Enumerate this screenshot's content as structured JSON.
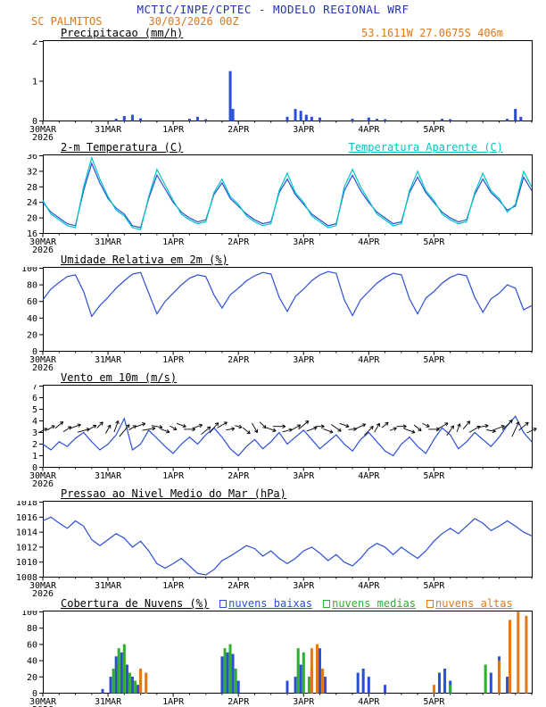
{
  "header": {
    "title": "MCTIC/INPE/CPTEC - MODELO REGIONAL WRF",
    "station": "SC PALMITOS",
    "run_datetime": "30/03/2026 00Z"
  },
  "colors": {
    "title_blue": "#2233bb",
    "orange": "#e07818",
    "line_blue": "#2a4fd6",
    "cyan": "#00c4c4",
    "green": "#2fae2f",
    "axis_black": "#000000"
  },
  "x_axis": {
    "domain_hours": [
      0,
      180
    ],
    "step_hours": 3,
    "minor_step": 6,
    "tick_hours": [
      0,
      24,
      48,
      72,
      96,
      120,
      144
    ],
    "tick_labels": [
      "30MAR",
      "31MAR",
      "1APR",
      "2APR",
      "3APR",
      "4APR",
      "5APR"
    ],
    "year_label": "2026"
  },
  "chart_data": [
    {
      "id": "precip",
      "type": "bar",
      "title": "Precipitacao (mm/h)",
      "right_label": "53.1611W 27.0675S 406m",
      "ylim": [
        0,
        2
      ],
      "yticks": [
        0,
        1,
        2
      ],
      "bars": [
        {
          "name": "precipitacao",
          "color": "#2a4fd6",
          "points": [
            [
              27,
              0.05
            ],
            [
              30,
              0.12
            ],
            [
              33,
              0.15
            ],
            [
              36,
              0.06
            ],
            [
              54,
              0.05
            ],
            [
              57,
              0.1
            ],
            [
              60,
              0.04
            ],
            [
              69,
              1.25
            ],
            [
              70,
              0.3
            ],
            [
              90,
              0.1
            ],
            [
              93,
              0.3
            ],
            [
              95,
              0.25
            ],
            [
              97,
              0.15
            ],
            [
              99,
              0.1
            ],
            [
              102,
              0.08
            ],
            [
              114,
              0.05
            ],
            [
              120,
              0.08
            ],
            [
              123,
              0.05
            ],
            [
              126,
              0.04
            ],
            [
              147,
              0.05
            ],
            [
              150,
              0.04
            ],
            [
              171,
              0.05
            ],
            [
              174,
              0.3
            ],
            [
              176,
              0.1
            ]
          ]
        }
      ]
    },
    {
      "id": "temp2m",
      "type": "line",
      "title": "2-m Temperatura (C)",
      "right_label": "Temperatura Aparente (C)",
      "ylim": [
        16,
        36
      ],
      "yticks": [
        16,
        20,
        24,
        28,
        32,
        36
      ],
      "series": [
        {
          "name": "2-m Temperatura (C)",
          "color": "#2a4fd6",
          "values": [
            24,
            21.5,
            20,
            18.5,
            18,
            27,
            34,
            29,
            25,
            22.5,
            21,
            18,
            17.5,
            25,
            31,
            27.5,
            24,
            21.5,
            20,
            19,
            19.5,
            26,
            29,
            25,
            23,
            21,
            19.5,
            18.5,
            19,
            26.5,
            30,
            26,
            23.5,
            21,
            19.5,
            18,
            18.5,
            27,
            31,
            27,
            24,
            21.5,
            20,
            18.5,
            19,
            26.5,
            30.5,
            26.5,
            24,
            21.5,
            20,
            19,
            19.5,
            26,
            30,
            26.5,
            24.5,
            22,
            23,
            30.5,
            27
          ]
        },
        {
          "name": "Temperatura Aparente (C)",
          "color": "#00c4c4",
          "values": [
            24.5,
            21,
            19.5,
            18,
            17.5,
            28,
            35.5,
            30,
            25.5,
            22,
            20.5,
            17.5,
            17,
            25.5,
            32.5,
            28.5,
            24.5,
            21,
            19.5,
            18.5,
            19,
            26.5,
            30,
            25.5,
            23.5,
            20.5,
            19,
            18,
            18.5,
            27,
            31.5,
            26.5,
            24,
            20.5,
            19,
            17.5,
            18,
            28,
            32.5,
            28,
            24.5,
            21,
            19.5,
            18,
            18.5,
            27,
            32,
            27,
            24.5,
            21,
            19.5,
            18.5,
            19,
            26.5,
            31.5,
            27,
            25,
            21.5,
            23.5,
            32,
            28
          ]
        }
      ]
    },
    {
      "id": "rh2m",
      "type": "line",
      "title": "Umidade Relativa em 2m (%)",
      "ylim": [
        0,
        100
      ],
      "yticks": [
        0,
        20,
        40,
        60,
        80,
        100
      ],
      "series": [
        {
          "name": "Umidade Relativa",
          "color": "#2a4fd6",
          "values": [
            62,
            75,
            83,
            90,
            92,
            72,
            42,
            55,
            65,
            76,
            85,
            93,
            95,
            70,
            45,
            60,
            70,
            80,
            88,
            92,
            90,
            68,
            52,
            68,
            76,
            85,
            91,
            95,
            93,
            65,
            48,
            66,
            75,
            85,
            92,
            96,
            94,
            62,
            43,
            62,
            72,
            82,
            89,
            94,
            92,
            63,
            45,
            64,
            72,
            82,
            89,
            93,
            91,
            65,
            47,
            63,
            70,
            80,
            76,
            50,
            55
          ]
        }
      ]
    },
    {
      "id": "wind10m",
      "type": "line",
      "title": "Vento em 10m (m/s)",
      "ylim": [
        0,
        7
      ],
      "yticks": [
        0,
        1,
        2,
        3,
        4,
        5,
        6,
        7
      ],
      "series": [
        {
          "name": "Velocidade do Vento",
          "color": "#2a4fd6",
          "values": [
            2,
            1.5,
            2.2,
            1.8,
            2.5,
            3,
            2.2,
            1.5,
            2,
            2.8,
            4.2,
            1.5,
            2,
            3.2,
            2.5,
            1.8,
            1.2,
            2,
            2.6,
            2,
            2.8,
            3.4,
            2.6,
            1.6,
            1,
            1.8,
            2.4,
            1.6,
            2.2,
            3,
            2,
            2.6,
            3.2,
            2.4,
            1.6,
            2.2,
            2.8,
            2,
            1.4,
            2.4,
            3,
            2.2,
            1.4,
            1,
            2,
            2.6,
            1.8,
            1.2,
            2.4,
            3.4,
            2.8,
            1.6,
            2.2,
            3,
            2.4,
            1.8,
            2.6,
            3.6,
            4.4,
            3,
            2.2
          ]
        }
      ],
      "barbs": {
        "color": "#000000",
        "angles_deg": [
          25,
          30,
          40,
          35,
          20,
          15,
          30,
          45,
          60,
          70,
          50,
          30,
          20,
          10,
          -10,
          -20,
          -30,
          -20,
          0,
          20,
          40,
          50,
          30,
          10,
          -15,
          -40,
          -60,
          -45,
          -20,
          0,
          15,
          30,
          40,
          20,
          0,
          -20,
          -35,
          -20,
          5,
          25,
          45,
          60,
          40,
          20,
          0,
          -20,
          -40,
          -25,
          0,
          30,
          55,
          70,
          50,
          30,
          10,
          -10,
          20,
          45,
          65,
          40,
          25
        ]
      }
    },
    {
      "id": "slp",
      "type": "line",
      "title": "Pressao ao Nivel Medio do Mar (hPa)",
      "ylim": [
        1008,
        1018
      ],
      "yticks": [
        1008,
        1010,
        1012,
        1014,
        1016,
        1018
      ],
      "series": [
        {
          "name": "Pressao ao Nivel Medio do Mar",
          "color": "#2a4fd6",
          "values": [
            1015.5,
            1016,
            1015.2,
            1014.5,
            1015.5,
            1014.8,
            1013,
            1012.2,
            1013,
            1013.8,
            1013.2,
            1012,
            1012.8,
            1011.5,
            1009.8,
            1009.2,
            1009.8,
            1010.5,
            1009.5,
            1008.5,
            1008.3,
            1009,
            1010.2,
            1010.8,
            1011.5,
            1012.2,
            1011.8,
            1010.8,
            1011.5,
            1010.5,
            1009.8,
            1010.5,
            1011.5,
            1012,
            1011.2,
            1010.2,
            1011,
            1010,
            1009.5,
            1010.5,
            1011.8,
            1012.5,
            1012,
            1011,
            1012,
            1011.2,
            1010.5,
            1011.5,
            1012.8,
            1013.8,
            1014.5,
            1013.8,
            1014.8,
            1015.8,
            1015.2,
            1014.2,
            1014.8,
            1015.5,
            1014.8,
            1014,
            1013.5
          ]
        }
      ]
    },
    {
      "id": "clouds",
      "type": "bar",
      "title": "Cobertura de Nuvens (%)",
      "ylim": [
        0,
        100
      ],
      "yticks": [
        0,
        20,
        40,
        60,
        80,
        100
      ],
      "legend": [
        {
          "label": "nuvens baixas",
          "color": "#2a4fd6"
        },
        {
          "label": "nuvens medias",
          "color": "#2fae2f"
        },
        {
          "label": "nuvens altas",
          "color": "#e07818"
        }
      ],
      "bars": [
        {
          "name": "nuvens baixas",
          "color": "#2a4fd6",
          "points": [
            [
              22,
              5
            ],
            [
              25,
              20
            ],
            [
              27,
              45
            ],
            [
              29,
              50
            ],
            [
              31,
              35
            ],
            [
              33,
              20
            ],
            [
              35,
              10
            ],
            [
              66,
              45
            ],
            [
              68,
              50
            ],
            [
              70,
              48
            ],
            [
              72,
              15
            ],
            [
              90,
              15
            ],
            [
              93,
              20
            ],
            [
              95,
              35
            ],
            [
              99,
              30
            ],
            [
              102,
              55
            ],
            [
              104,
              20
            ],
            [
              116,
              25
            ],
            [
              118,
              30
            ],
            [
              120,
              20
            ],
            [
              126,
              10
            ],
            [
              146,
              25
            ],
            [
              148,
              30
            ],
            [
              150,
              15
            ],
            [
              165,
              25
            ],
            [
              168,
              45
            ],
            [
              171,
              20
            ]
          ]
        },
        {
          "name": "nuvens medias",
          "color": "#2fae2f",
          "points": [
            [
              26,
              30
            ],
            [
              28,
              55
            ],
            [
              30,
              60
            ],
            [
              32,
              25
            ],
            [
              34,
              15
            ],
            [
              67,
              55
            ],
            [
              69,
              60
            ],
            [
              71,
              30
            ],
            [
              94,
              55
            ],
            [
              96,
              50
            ],
            [
              98,
              20
            ],
            [
              150,
              10
            ],
            [
              163,
              35
            ]
          ]
        },
        {
          "name": "nuvens altas",
          "color": "#e07818",
          "points": [
            [
              36,
              30
            ],
            [
              38,
              25
            ],
            [
              99,
              55
            ],
            [
              101,
              60
            ],
            [
              103,
              30
            ],
            [
              144,
              10
            ],
            [
              168,
              40
            ],
            [
              172,
              90
            ],
            [
              175,
              100
            ],
            [
              178,
              95
            ]
          ]
        }
      ]
    }
  ]
}
